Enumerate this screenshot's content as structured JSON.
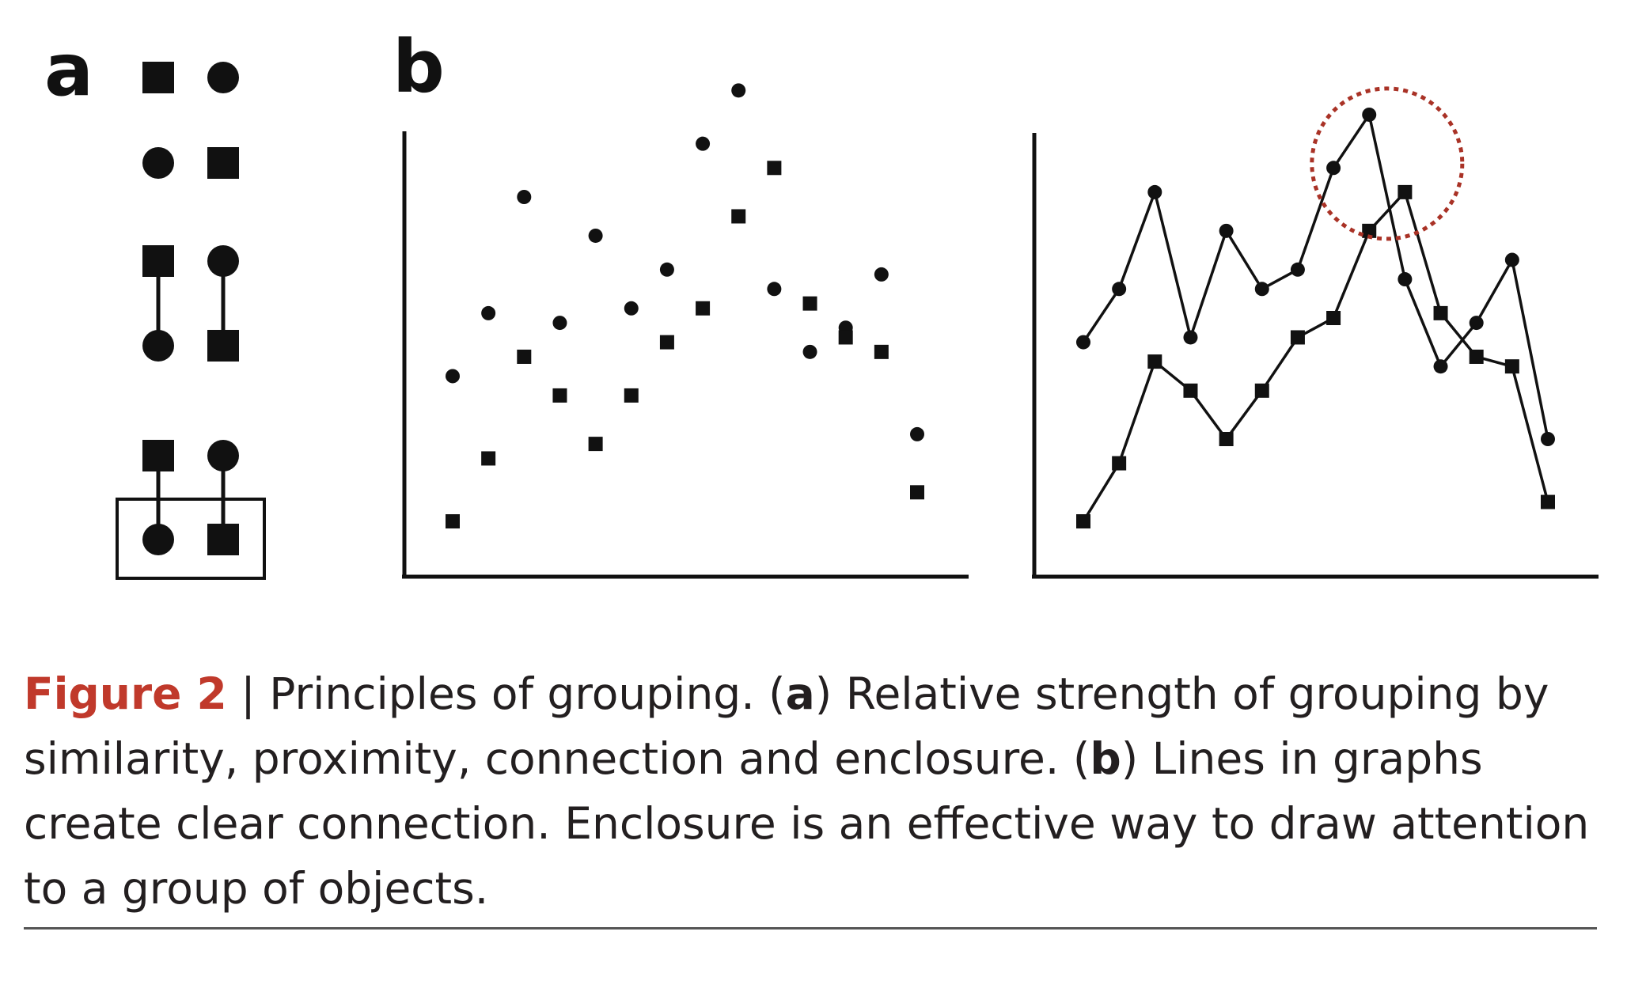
{
  "panels": {
    "a": {
      "letter": "a",
      "rows": [
        {
          "grouping": "similarity",
          "pairs": [
            [
              "square",
              "circle"
            ],
            [
              "circle",
              "square"
            ]
          ],
          "connected": false,
          "enclosed": false
        },
        {
          "grouping": "connection",
          "pairs": [
            [
              "square",
              "circle"
            ],
            [
              "circle",
              "square"
            ]
          ],
          "connected": true,
          "enclosed": false
        },
        {
          "grouping": "enclosure",
          "pairs": [
            [
              "square",
              "circle"
            ],
            [
              "circle",
              "square"
            ]
          ],
          "connected": true,
          "enclosed": true
        }
      ]
    },
    "b": {
      "letter": "b",
      "scatter": {
        "circle_series": [
          [
            1,
            3.8
          ],
          [
            2,
            5.1
          ],
          [
            3,
            7.5
          ],
          [
            4,
            4.9
          ],
          [
            5,
            6.7
          ],
          [
            6,
            5.2
          ],
          [
            7,
            6.0
          ],
          [
            8,
            8.6
          ],
          [
            9,
            9.7
          ],
          [
            10,
            5.6
          ],
          [
            11,
            4.3
          ],
          [
            12,
            4.8
          ],
          [
            13,
            5.9
          ],
          [
            14,
            2.6
          ]
        ],
        "square_series": [
          [
            1,
            0.8
          ],
          [
            2,
            2.1
          ],
          [
            3,
            4.2
          ],
          [
            4,
            3.4
          ],
          [
            5,
            2.4
          ],
          [
            6,
            3.4
          ],
          [
            7,
            4.5
          ],
          [
            8,
            5.2
          ],
          [
            9,
            7.1
          ],
          [
            10,
            8.1
          ],
          [
            11,
            5.3
          ],
          [
            12,
            4.6
          ],
          [
            13,
            4.3
          ],
          [
            14,
            1.4
          ]
        ]
      },
      "lines": {
        "circle_series": [
          [
            1,
            4.5
          ],
          [
            2,
            5.6
          ],
          [
            3,
            7.6
          ],
          [
            4,
            4.6
          ],
          [
            5,
            6.8
          ],
          [
            6,
            5.6
          ],
          [
            7,
            6.0
          ],
          [
            8,
            8.1
          ],
          [
            9,
            9.2
          ],
          [
            10,
            5.8
          ],
          [
            11,
            4.0
          ],
          [
            12,
            4.9
          ],
          [
            13,
            6.2
          ],
          [
            14,
            2.5
          ]
        ],
        "square_series": [
          [
            1,
            0.8
          ],
          [
            2,
            2.0
          ],
          [
            3,
            4.1
          ],
          [
            4,
            3.5
          ],
          [
            5,
            2.5
          ],
          [
            6,
            3.5
          ],
          [
            7,
            4.6
          ],
          [
            8,
            5.0
          ],
          [
            9,
            6.8
          ],
          [
            10,
            7.6
          ],
          [
            11,
            5.1
          ],
          [
            12,
            4.2
          ],
          [
            13,
            4.0
          ],
          [
            14,
            1.2
          ]
        ],
        "highlight": {
          "enclosed_points": [
            9,
            10
          ],
          "color": "#a93226"
        }
      }
    }
  },
  "caption": {
    "figure_label": "Figure 2",
    "separator": " | ",
    "text_1": "Principles of grouping. (",
    "bold_a": "a",
    "text_2": ") Relative strength of grouping by similarity, proximity, connection and enclosure. (",
    "bold_b": "b",
    "text_3": ") Lines in graphs create clear connection. Enclosure is an effective way to draw attention to a group of objects."
  },
  "colors": {
    "ink": "#111111",
    "caption_text": "#231f20",
    "figure_label": "#c0392b",
    "highlight": "#a93226"
  }
}
